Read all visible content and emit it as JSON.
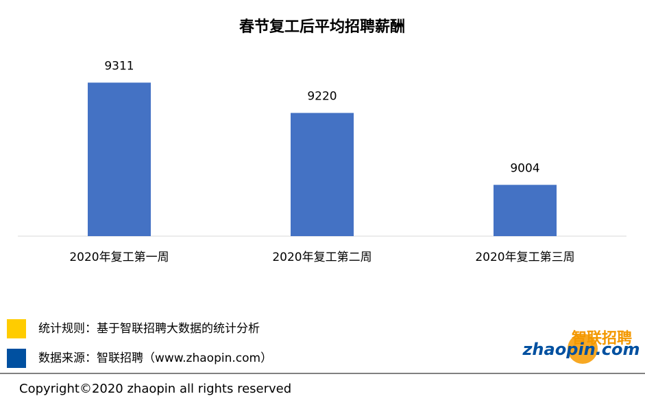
{
  "chart_data": {
    "type": "bar",
    "title": "春节复工后平均招聘薪酬",
    "categories": [
      "2020年复工第一周",
      "2020年复工第二周",
      "2020年复工第三周"
    ],
    "values": [
      9311,
      9220,
      9004
    ],
    "color": "#4472c4",
    "ylim": [
      8850,
      9320
    ]
  },
  "notes": [
    {
      "text": "统计规则：基于智联招聘大数据的统计分析",
      "color": "#ffcc00"
    },
    {
      "text": "数据来源：智联招聘（www.zhaopin.com）",
      "color": "#0050a0"
    }
  ],
  "logo": {
    "name": "智联招聘",
    "domain": "zhaopin.com"
  },
  "footer": {
    "copyright": "Copyright©2020 zhaopin all rights reserved"
  }
}
